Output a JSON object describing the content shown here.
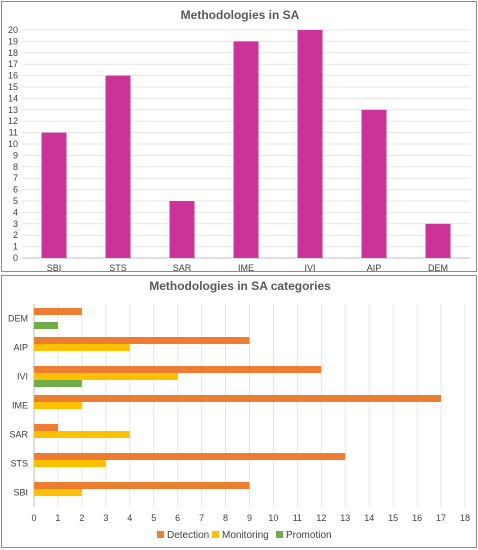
{
  "colors": {
    "bar": "#cc3399",
    "detection": "#ed7d31",
    "monitoring": "#ffc000",
    "promotion": "#70ad47"
  },
  "chart_data": [
    {
      "type": "bar",
      "title": "Methodologies in SA",
      "categories": [
        "SBI",
        "STS",
        "SAR",
        "IME",
        "IVI",
        "AIP",
        "DEM"
      ],
      "values": [
        11,
        16,
        5,
        19,
        20,
        13,
        3
      ],
      "ylim": [
        0,
        20
      ],
      "yticks": [
        0,
        1,
        2,
        3,
        4,
        5,
        6,
        7,
        8,
        9,
        10,
        11,
        12,
        13,
        14,
        15,
        16,
        17,
        18,
        19,
        20
      ],
      "grid": true
    },
    {
      "type": "bar",
      "orientation": "horizontal",
      "title": "Methodologies in SA categories",
      "categories": [
        "SBI",
        "STS",
        "SAR",
        "IME",
        "IVI",
        "AIP",
        "DEM"
      ],
      "series": [
        {
          "name": "Detection",
          "values": [
            9,
            13,
            1,
            17,
            12,
            9,
            2
          ]
        },
        {
          "name": "Monitoring",
          "values": [
            2,
            3,
            4,
            2,
            6,
            4,
            0
          ]
        },
        {
          "name": "Promotion",
          "values": [
            0,
            0,
            0,
            0,
            2,
            0,
            1
          ]
        }
      ],
      "xlim": [
        0,
        18
      ],
      "xticks": [
        0,
        1,
        2,
        3,
        4,
        5,
        6,
        7,
        8,
        9,
        10,
        11,
        12,
        13,
        14,
        15,
        16,
        17,
        18
      ],
      "grid": true,
      "legend": "bottom"
    }
  ]
}
